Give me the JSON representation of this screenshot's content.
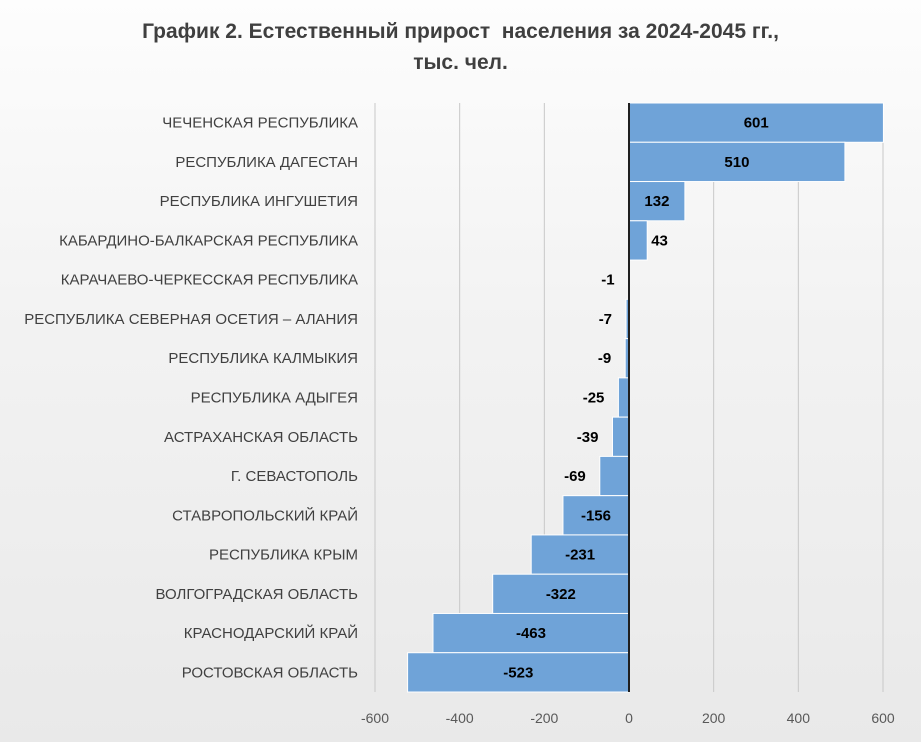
{
  "chart_data": {
    "type": "bar",
    "orientation": "horizontal",
    "title": "График 2. Естественный прирост  населения за 2024-2045 гг.,",
    "subtitle": "тыс. чел.",
    "categories": [
      "ЧЕЧЕНСКАЯ РЕСПУБЛИКА",
      "РЕСПУБЛИКА ДАГЕСТАН",
      "РЕСПУБЛИКА ИНГУШЕТИЯ",
      "КАБАРДИНО-БАЛКАРСКАЯ РЕСПУБЛИКА",
      "КАРАЧАЕВО-ЧЕРКЕССКАЯ РЕСПУБЛИКА",
      "РЕСПУБЛИКА СЕВЕРНАЯ ОСЕТИЯ – АЛАНИЯ",
      "РЕСПУБЛИКА КАЛМЫКИЯ",
      "РЕСПУБЛИКА АДЫГЕЯ",
      "АСТРАХАНСКАЯ ОБЛАСТЬ",
      "Г. СЕВАСТОПОЛЬ",
      "СТАВРОПОЛЬСКИЙ КРАЙ",
      "РЕСПУБЛИКА КРЫМ",
      "ВОЛГОГРАДСКАЯ ОБЛАСТЬ",
      "КРАСНОДАРСКИЙ КРАЙ",
      "РОСТОВСКАЯ ОБЛАСТЬ"
    ],
    "values": [
      601,
      510,
      132,
      43,
      -1,
      -7,
      -9,
      -25,
      -39,
      -69,
      -156,
      -231,
      -322,
      -463,
      -523
    ],
    "value_labels": [
      "601",
      "510",
      "132",
      "43",
      "-1",
      "-7",
      "-9",
      "-25",
      "-39",
      "-69",
      "-156",
      "-231",
      "-322",
      "-463",
      "-523"
    ],
    "xlim": [
      -600,
      600
    ],
    "xticks": [
      -600,
      -400,
      -200,
      0,
      200,
      400,
      600
    ],
    "xtick_labels": [
      "-600",
      "-400",
      "-200",
      "0",
      "200",
      "400",
      "600"
    ],
    "grid": true,
    "bar_color": "#6fa3d8",
    "bar_edge_color": "#ffffff",
    "axis_color": "#1f1f1f",
    "grid_color": "#c8c8c8"
  }
}
